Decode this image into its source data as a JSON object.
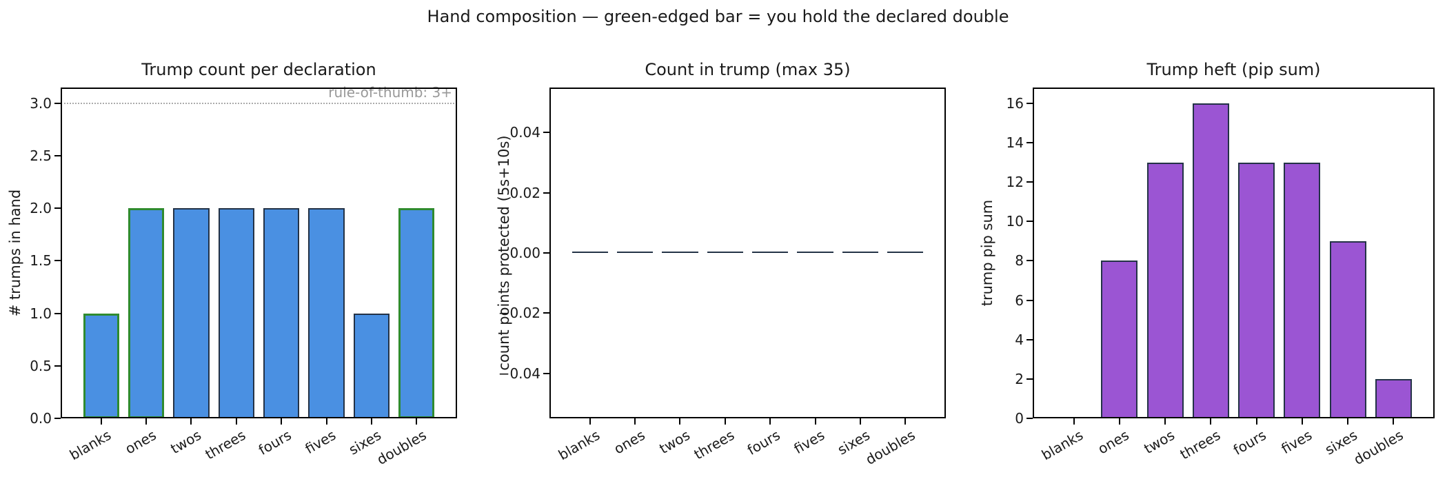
{
  "suptitle": "Hand composition — green-edged bar = you hold the declared double",
  "colors": {
    "bar_fill_blue": "#4a90e2",
    "bar_fill_purple": "#9b55d3",
    "bar_edge_dark": "#233246",
    "bar_edge_green": "#2f8b2f",
    "ref_line_gray": "#aaaaaa",
    "annotation_gray": "#999999",
    "axis_color": "#000000",
    "background": "#ffffff"
  },
  "chart_data": [
    {
      "type": "bar",
      "title": "Trump count per declaration",
      "xlabel": "",
      "ylabel": "# trumps in hand",
      "categories": [
        "blanks",
        "ones",
        "twos",
        "threes",
        "fours",
        "fives",
        "sixes",
        "doubles"
      ],
      "values": [
        1,
        2,
        2,
        2,
        2,
        2,
        1,
        2
      ],
      "green_edge_flags": [
        true,
        true,
        false,
        false,
        false,
        false,
        false,
        true
      ],
      "green_edge_categories": [
        "blanks",
        "ones",
        "doubles"
      ],
      "ylim": [
        0,
        3.15
      ],
      "yticks": [
        0.0,
        0.5,
        1.0,
        1.5,
        2.0,
        2.5,
        3.0
      ],
      "ytick_labels": [
        "0.0",
        "0.5",
        "1.0",
        "1.5",
        "2.0",
        "2.5",
        "3.0"
      ],
      "ref_line": {
        "y": 3.0,
        "label": "rule-of-thumb: 3+",
        "style": "dotted"
      },
      "bar_color": "#4a90e2",
      "edge_color": "#233246",
      "highlight_edge_color": "#2f8b2f",
      "grid": false,
      "legend": null
    },
    {
      "type": "bar",
      "title": "Count in trump (max 35)",
      "xlabel": "",
      "ylabel": "count points protected (5s+10s)",
      "categories": [
        "blanks",
        "ones",
        "twos",
        "threes",
        "fours",
        "fives",
        "sixes",
        "doubles"
      ],
      "values": [
        0,
        0,
        0,
        0,
        0,
        0,
        0,
        0
      ],
      "green_edge_flags": [
        false,
        false,
        false,
        false,
        false,
        false,
        false,
        false
      ],
      "ylim": [
        -0.055,
        0.055
      ],
      "yticks": [
        -0.04,
        -0.02,
        0.0,
        0.02,
        0.04
      ],
      "ytick_labels": [
        "−0.04",
        "−0.02",
        "0.00",
        "0.02",
        "0.04"
      ],
      "ref_line": null,
      "bar_color": "#4a90e2",
      "edge_color": "#233246",
      "grid": false,
      "legend": null
    },
    {
      "type": "bar",
      "title": "Trump heft (pip sum)",
      "xlabel": "",
      "ylabel": "trump pip sum",
      "categories": [
        "blanks",
        "ones",
        "twos",
        "threes",
        "fours",
        "fives",
        "sixes",
        "doubles"
      ],
      "values": [
        0,
        8,
        13,
        16,
        13,
        13,
        9,
        2
      ],
      "green_edge_flags": [
        false,
        false,
        false,
        false,
        false,
        false,
        false,
        false
      ],
      "ylim": [
        0,
        16.8
      ],
      "yticks": [
        0,
        2,
        4,
        6,
        8,
        10,
        12,
        14,
        16
      ],
      "ytick_labels": [
        "0",
        "2",
        "4",
        "6",
        "8",
        "10",
        "12",
        "14",
        "16"
      ],
      "ref_line": null,
      "bar_color": "#9b55d3",
      "edge_color": "#233246",
      "grid": false,
      "legend": null
    }
  ]
}
